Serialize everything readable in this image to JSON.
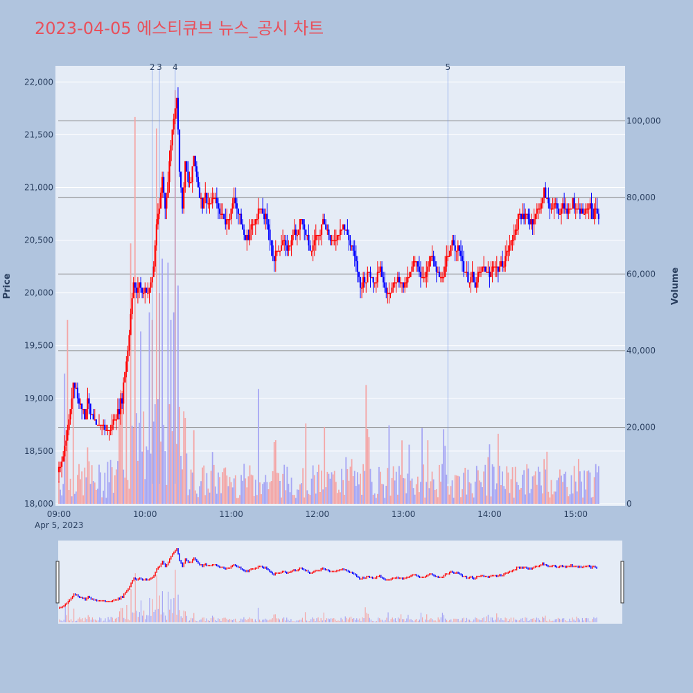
{
  "chart_data": {
    "type": "candlestick",
    "title": "2023-04-05 에스티큐브 뉴스_공시 차트",
    "ylabel": "Price",
    "y2label": "Volume",
    "date_label": "Apr 5, 2023",
    "ylim": [
      18000,
      22140
    ],
    "y2lim": [
      0,
      114000
    ],
    "xlim": [
      "09:00",
      "15:32"
    ],
    "y_ticks": [
      "18,000",
      "18,500",
      "19,000",
      "19,500",
      "20,000",
      "20,500",
      "21,000",
      "21,500",
      "22,000"
    ],
    "y2_ticks": [
      "0",
      "20,000",
      "40,000",
      "60,000",
      "80,000",
      "100,000"
    ],
    "x_ticks": [
      "09:00",
      "10:00",
      "11:00",
      "12:00",
      "13:00",
      "14:00",
      "15:00"
    ],
    "grid": true,
    "up_color": "#ff0000",
    "down_color": "#0000ff",
    "volume_levels": [
      20000,
      40000,
      60000,
      80000,
      100000
    ],
    "news_markers": [
      {
        "label": "2",
        "time": "10:05"
      },
      {
        "label": "3",
        "time": "10:10"
      },
      {
        "label": "4",
        "time": "10:21"
      },
      {
        "label": "5",
        "time": "13:31"
      }
    ],
    "price_path": [
      [
        "09:00",
        18300
      ],
      [
        "09:02",
        18400
      ],
      [
        "09:04",
        18550
      ],
      [
        "09:06",
        18700
      ],
      [
        "09:08",
        18900
      ],
      [
        "09:10",
        19150
      ],
      [
        "09:12",
        19100
      ],
      [
        "09:14",
        18950
      ],
      [
        "09:16",
        18950
      ],
      [
        "09:18",
        18800
      ],
      [
        "09:20",
        19000
      ],
      [
        "09:22",
        18850
      ],
      [
        "09:24",
        18800
      ],
      [
        "09:26",
        18750
      ],
      [
        "09:28",
        18750
      ],
      [
        "09:30",
        18750
      ],
      [
        "09:33",
        18700
      ],
      [
        "09:36",
        18700
      ],
      [
        "09:40",
        18850
      ],
      [
        "09:42",
        18900
      ],
      [
        "09:44",
        19000
      ],
      [
        "09:46",
        19250
      ],
      [
        "09:48",
        19450
      ],
      [
        "09:50",
        19800
      ],
      [
        "09:52",
        20100
      ],
      [
        "09:54",
        20000
      ],
      [
        "09:56",
        20100
      ],
      [
        "09:58",
        20000
      ],
      [
        "10:00",
        20050
      ],
      [
        "10:02",
        20000
      ],
      [
        "10:04",
        20100
      ],
      [
        "10:06",
        20250
      ],
      [
        "10:08",
        20650
      ],
      [
        "10:10",
        20800
      ],
      [
        "10:12",
        21100
      ],
      [
        "10:14",
        20800
      ],
      [
        "10:16",
        21050
      ],
      [
        "10:18",
        21400
      ],
      [
        "10:20",
        21650
      ],
      [
        "10:22",
        21850
      ],
      [
        "10:24",
        21200
      ],
      [
        "10:26",
        20800
      ],
      [
        "10:28",
        21200
      ],
      [
        "10:30",
        21050
      ],
      [
        "10:32",
        21050
      ],
      [
        "10:34",
        21300
      ],
      [
        "10:36",
        21100
      ],
      [
        "10:38",
        20950
      ],
      [
        "10:40",
        20850
      ],
      [
        "10:42",
        20950
      ],
      [
        "10:44",
        20850
      ],
      [
        "10:46",
        20850
      ],
      [
        "10:48",
        20900
      ],
      [
        "10:50",
        20850
      ],
      [
        "10:52",
        20750
      ],
      [
        "10:54",
        20750
      ],
      [
        "10:56",
        20650
      ],
      [
        "10:58",
        20700
      ],
      [
        "11:00",
        20800
      ],
      [
        "11:02",
        20900
      ],
      [
        "11:04",
        20800
      ],
      [
        "11:06",
        20700
      ],
      [
        "11:08",
        20600
      ],
      [
        "11:10",
        20500
      ],
      [
        "11:12",
        20550
      ],
      [
        "11:14",
        20650
      ],
      [
        "11:16",
        20650
      ],
      [
        "11:18",
        20750
      ],
      [
        "11:20",
        20800
      ],
      [
        "11:22",
        20750
      ],
      [
        "11:24",
        20700
      ],
      [
        "11:26",
        20600
      ],
      [
        "11:28",
        20450
      ],
      [
        "11:30",
        20300
      ],
      [
        "11:32",
        20400
      ],
      [
        "11:34",
        20450
      ],
      [
        "11:36",
        20500
      ],
      [
        "11:38",
        20400
      ],
      [
        "11:40",
        20450
      ],
      [
        "11:42",
        20500
      ],
      [
        "11:44",
        20600
      ],
      [
        "11:46",
        20550
      ],
      [
        "11:48",
        20700
      ],
      [
        "11:50",
        20650
      ],
      [
        "11:52",
        20550
      ],
      [
        "11:54",
        20450
      ],
      [
        "11:56",
        20400
      ],
      [
        "11:58",
        20500
      ],
      [
        "12:00",
        20550
      ],
      [
        "12:02",
        20600
      ],
      [
        "12:04",
        20700
      ],
      [
        "12:06",
        20650
      ],
      [
        "12:08",
        20550
      ],
      [
        "12:10",
        20450
      ],
      [
        "12:12",
        20500
      ],
      [
        "12:14",
        20550
      ],
      [
        "12:16",
        20600
      ],
      [
        "12:18",
        20650
      ],
      [
        "12:20",
        20600
      ],
      [
        "12:22",
        20500
      ],
      [
        "12:24",
        20450
      ],
      [
        "12:26",
        20350
      ],
      [
        "12:28",
        20200
      ],
      [
        "12:30",
        20050
      ],
      [
        "12:32",
        20150
      ],
      [
        "12:34",
        20100
      ],
      [
        "12:36",
        20200
      ],
      [
        "12:38",
        20150
      ],
      [
        "12:40",
        20100
      ],
      [
        "12:42",
        20200
      ],
      [
        "12:44",
        20250
      ],
      [
        "12:46",
        20100
      ],
      [
        "12:48",
        20050
      ],
      [
        "12:50",
        20000
      ],
      [
        "12:52",
        20050
      ],
      [
        "12:54",
        20100
      ],
      [
        "12:56",
        20150
      ],
      [
        "12:58",
        20100
      ],
      [
        "13:00",
        20050
      ],
      [
        "13:02",
        20100
      ],
      [
        "13:04",
        20150
      ],
      [
        "13:06",
        20250
      ],
      [
        "13:08",
        20300
      ],
      [
        "13:10",
        20250
      ],
      [
        "13:12",
        20150
      ],
      [
        "13:14",
        20150
      ],
      [
        "13:16",
        20200
      ],
      [
        "13:18",
        20300
      ],
      [
        "13:20",
        20350
      ],
      [
        "13:22",
        20250
      ],
      [
        "13:24",
        20200
      ],
      [
        "13:26",
        20150
      ],
      [
        "13:28",
        20200
      ],
      [
        "13:30",
        20300
      ],
      [
        "13:32",
        20350
      ],
      [
        "13:34",
        20500
      ],
      [
        "13:36",
        20450
      ],
      [
        "13:38",
        20400
      ],
      [
        "13:40",
        20350
      ],
      [
        "13:42",
        20250
      ],
      [
        "13:44",
        20200
      ],
      [
        "13:46",
        20100
      ],
      [
        "13:48",
        20150
      ],
      [
        "13:50",
        20050
      ],
      [
        "13:52",
        20150
      ],
      [
        "13:54",
        20200
      ],
      [
        "13:56",
        20250
      ],
      [
        "13:58",
        20200
      ],
      [
        "14:00",
        20150
      ],
      [
        "14:02",
        20250
      ],
      [
        "14:04",
        20250
      ],
      [
        "14:06",
        20200
      ],
      [
        "14:08",
        20250
      ],
      [
        "14:10",
        20300
      ],
      [
        "14:12",
        20400
      ],
      [
        "14:14",
        20450
      ],
      [
        "14:16",
        20500
      ],
      [
        "14:18",
        20600
      ],
      [
        "14:20",
        20700
      ],
      [
        "14:22",
        20750
      ],
      [
        "14:24",
        20700
      ],
      [
        "14:26",
        20750
      ],
      [
        "14:28",
        20650
      ],
      [
        "14:30",
        20700
      ],
      [
        "14:32",
        20750
      ],
      [
        "14:34",
        20800
      ],
      [
        "14:36",
        20850
      ],
      [
        "14:38",
        20950
      ],
      [
        "14:40",
        20900
      ],
      [
        "14:42",
        20800
      ],
      [
        "14:44",
        20850
      ],
      [
        "14:46",
        20800
      ],
      [
        "14:48",
        20750
      ],
      [
        "14:50",
        20800
      ],
      [
        "14:52",
        20850
      ],
      [
        "14:54",
        20750
      ],
      [
        "14:56",
        20800
      ],
      [
        "14:58",
        20850
      ],
      [
        "15:00",
        20800
      ],
      [
        "15:02",
        20750
      ],
      [
        "15:04",
        20800
      ],
      [
        "15:06",
        20750
      ],
      [
        "15:08",
        20800
      ],
      [
        "15:10",
        20850
      ],
      [
        "15:12",
        20750
      ],
      [
        "15:14",
        20800
      ],
      [
        "15:16",
        20700
      ]
    ],
    "volume_spikes": [
      [
        "09:04",
        34000,
        "down"
      ],
      [
        "09:06",
        48000,
        "up"
      ],
      [
        "09:10",
        28000,
        "up"
      ],
      [
        "09:50",
        68000,
        "up"
      ],
      [
        "09:53",
        101000,
        "up"
      ],
      [
        "09:57",
        45000,
        "down"
      ],
      [
        "10:03",
        50000,
        "down"
      ],
      [
        "10:05",
        48000,
        "up"
      ],
      [
        "10:08",
        98000,
        "up"
      ],
      [
        "10:10",
        55000,
        "up"
      ],
      [
        "10:12",
        64000,
        "down"
      ],
      [
        "10:16",
        63000,
        "down"
      ],
      [
        "10:18",
        48000,
        "down"
      ],
      [
        "10:20",
        50000,
        "down"
      ],
      [
        "10:21",
        108000,
        "up"
      ],
      [
        "10:23",
        57000,
        "down"
      ],
      [
        "11:19",
        30000,
        "down"
      ],
      [
        "12:34",
        31000,
        "up"
      ],
      [
        "15:24",
        25000,
        "up"
      ]
    ]
  }
}
